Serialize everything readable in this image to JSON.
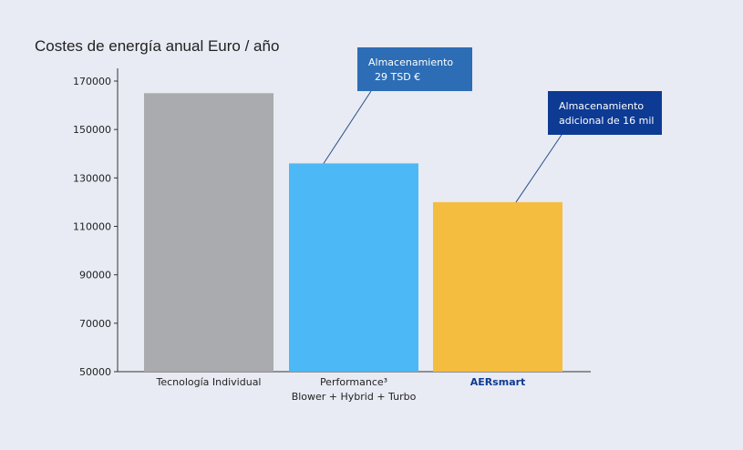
{
  "chart_data": {
    "type": "bar",
    "title": "Costes de energía anual Euro / año",
    "categories": [
      "Tecnología Individual",
      "Performance³\nBlower + Hybrid + Turbo",
      "AERsmart"
    ],
    "values": [
      165000,
      136000,
      120000
    ],
    "colors": [
      "#a9abae",
      "#4cb8f5",
      "#f5bd3f"
    ],
    "ylim": [
      50000,
      170000
    ],
    "yticks": [
      50000,
      70000,
      90000,
      110000,
      130000,
      150000,
      170000
    ],
    "annotations": [
      {
        "text": "Almacenamiento\n  29 TSD €",
        "color": "#2c6db5"
      },
      {
        "text": "Almacenamiento\nadicional de 16 mil",
        "color": "#0d3a93"
      }
    ]
  }
}
